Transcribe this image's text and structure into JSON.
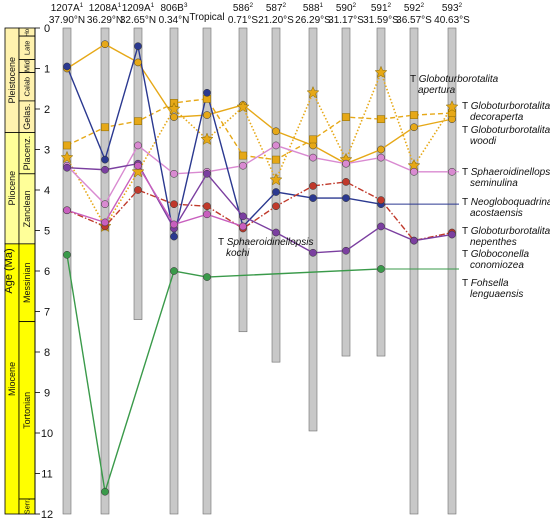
{
  "chart_data": {
    "type": "line",
    "y_axis": {
      "label": "Age (Ma)",
      "min": 0,
      "max": 12,
      "ticks": [
        0,
        1,
        2,
        3,
        4,
        5,
        6,
        7,
        8,
        9,
        10,
        11,
        12
      ],
      "inverted": true
    },
    "timescale": {
      "epochs": [
        {
          "name": "Pleistocene",
          "top": 0,
          "bottom": 2.58
        },
        {
          "name": "Pliocene",
          "top": 2.58,
          "bottom": 5.33
        },
        {
          "name": "Miocene",
          "top": 5.33,
          "bottom": 12
        }
      ],
      "stages": [
        {
          "name": "Hol",
          "top": 0,
          "bottom": 0.2
        },
        {
          "name": "Late",
          "top": 0.2,
          "bottom": 0.78
        },
        {
          "name": "Mid",
          "top": 0.78,
          "bottom": 1.1
        },
        {
          "name": "Calab",
          "top": 1.1,
          "bottom": 1.8
        },
        {
          "name": "Gelas.",
          "top": 1.8,
          "bottom": 2.58
        },
        {
          "name": "Placenz.",
          "top": 2.58,
          "bottom": 3.6
        },
        {
          "name": "Zanclean",
          "top": 3.6,
          "bottom": 5.33
        },
        {
          "name": "Messinian",
          "top": 5.33,
          "bottom": 7.25
        },
        {
          "name": "Tortonian",
          "top": 7.25,
          "bottom": 11.63
        },
        {
          "name": "Serr.",
          "top": 11.63,
          "bottom": 12
        }
      ],
      "colors": {
        "pleistocene": "#fff2ae",
        "pliocene": "#ffff99",
        "miocene": "#ffff00"
      }
    },
    "sites": [
      {
        "name": "1207A",
        "sup": "1",
        "lat": "37.90°N",
        "bar_bottom": 12
      },
      {
        "name": "1208A",
        "sup": "1",
        "lat": "36.29°N",
        "bar_bottom": 12
      },
      {
        "name": "1209A",
        "sup": "1",
        "lat": "32.65°N",
        "bar_bottom": 7.2
      },
      {
        "name": "806B",
        "sup": "3",
        "lat": "0.34°N",
        "bar_bottom": 12
      },
      {
        "name": "Tropical",
        "sup": "",
        "lat": "",
        "bar_bottom": 12
      },
      {
        "name": "586",
        "sup": "2",
        "lat": "0.71°S",
        "bar_bottom": 7.5
      },
      {
        "name": "587",
        "sup": "2",
        "lat": "21.20°S",
        "bar_bottom": 8.25
      },
      {
        "name": "588",
        "sup": "1",
        "lat": "26.29°S",
        "bar_bottom": 9.95
      },
      {
        "name": "590",
        "sup": "2",
        "lat": "31.17°S",
        "bar_bottom": 8.1
      },
      {
        "name": "591",
        "sup": "2",
        "lat": "31.59°S",
        "bar_bottom": 8.1
      },
      {
        "name": "592",
        "sup": "2",
        "lat": "36.57°S",
        "bar_bottom": 12
      },
      {
        "name": "593",
        "sup": "2",
        "lat": "40.63°S",
        "bar_bottom": 12
      }
    ],
    "series": [
      {
        "name": "T Globoturborotalita apertura",
        "italic": [
          "Globoturborotalita",
          "apertura"
        ],
        "color": "#e6a817",
        "dash": "solid",
        "marker": "circle",
        "values": [
          1.0,
          0.4,
          0.85,
          2.2,
          2.15,
          1.9,
          2.55,
          2.9,
          3.35,
          3.0,
          2.45,
          2.25
        ]
      },
      {
        "name": "T Globoturborotalita decoraperta",
        "italic": [
          "Globoturborotalita",
          "decoraperta"
        ],
        "color": "#e6a817",
        "dash": "dashed",
        "marker": "square",
        "values": [
          2.9,
          2.45,
          2.3,
          1.85,
          1.75,
          3.15,
          3.25,
          2.75,
          2.2,
          2.25,
          2.15,
          2.1
        ]
      },
      {
        "name": "T Globoturborotalita woodi",
        "italic": [
          "Globoturborotalita",
          "woodi"
        ],
        "color": "#e6a817",
        "dash": "dotted",
        "marker": "star",
        "values": [
          3.2,
          4.9,
          3.55,
          2.0,
          2.75,
          1.95,
          3.75,
          1.6,
          3.25,
          1.1,
          3.4,
          1.95
        ]
      },
      {
        "name": "T Sphaeroidinellopsis seminulina",
        "italic": [
          "Sphaeroidinellopsis",
          "seminulina"
        ],
        "color": "#d98ad1",
        "dash": "solid",
        "marker": "circle",
        "values": [
          3.4,
          4.35,
          2.9,
          3.6,
          3.55,
          3.4,
          2.9,
          3.2,
          3.35,
          3.2,
          3.55,
          3.55
        ]
      },
      {
        "name": "T Neogloboquadrina acostaensis",
        "italic": [
          "Neogloboquadrina",
          "acostaensis"
        ],
        "color": "#2b3990",
        "dash": "solid",
        "marker": "circle",
        "values": [
          0.95,
          3.25,
          0.45,
          5.15,
          1.6,
          4.9,
          4.05,
          4.2,
          4.2,
          4.35,
          null,
          null
        ]
      },
      {
        "name": "T Globoturborotalita nepenthes",
        "italic": [
          "Globoturborotalita",
          "nepenthes"
        ],
        "color": "#c0392b",
        "dash": "dashdot",
        "marker": "circle",
        "values": [
          4.5,
          4.9,
          4.0,
          4.35,
          4.4,
          4.95,
          4.4,
          3.9,
          3.8,
          4.25,
          5.25,
          5.05
        ]
      },
      {
        "name": "T Globoconella conomiozea",
        "italic": [
          "Globoconella",
          "conomiozea"
        ],
        "color": "#7b3fa0",
        "dash": "solid",
        "marker": "circle",
        "values": [
          3.45,
          3.5,
          3.35,
          4.95,
          3.6,
          4.65,
          5.05,
          5.55,
          5.5,
          4.9,
          5.25,
          5.1
        ]
      },
      {
        "name": "T Sphaeroidinellopsis kochi",
        "italic": [
          "Sphaeroidinellopsis",
          "kochi"
        ],
        "color": "#c85fbe",
        "dash": "solid",
        "marker": "circle",
        "values": [
          4.5,
          4.8,
          3.4,
          4.85,
          4.6,
          4.9,
          null,
          null,
          null,
          null,
          null,
          null
        ]
      },
      {
        "name": "T Fohsella lenguaensis",
        "italic": [
          "Fohsella",
          "lenguaensis"
        ],
        "color": "#3a9a4a",
        "dash": "solid",
        "marker": "circle",
        "values": [
          5.6,
          11.45,
          null,
          6.0,
          6.15,
          null,
          null,
          null,
          null,
          5.95,
          null,
          null
        ]
      }
    ]
  }
}
